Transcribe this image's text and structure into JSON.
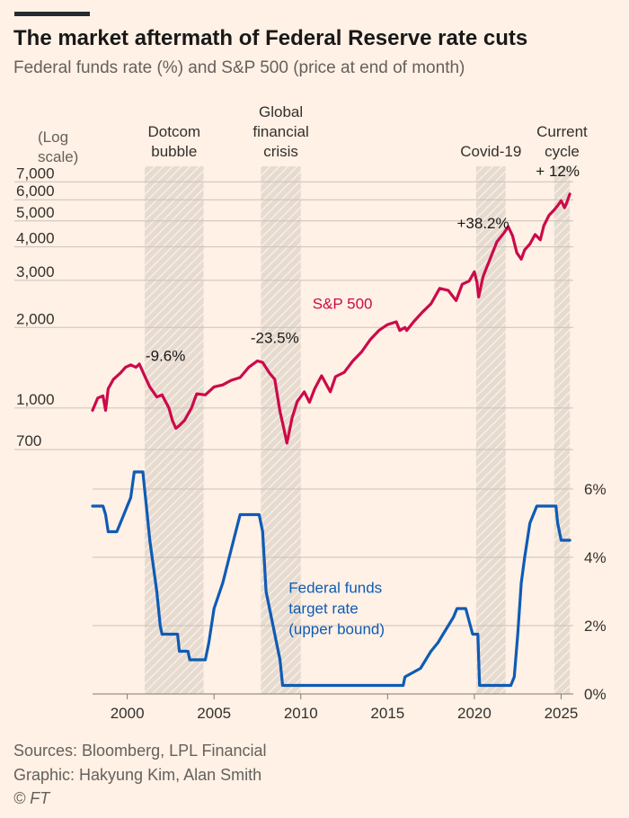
{
  "chart_data": [
    {
      "type": "line",
      "title": "The market aftermath of Federal Reserve rate cuts",
      "subtitle": "Federal funds rate (%) and S&P 500 (price at end of month)",
      "scale_note": "(Log scale)",
      "y_scale": "log",
      "ylim": [
        600,
        8000
      ],
      "y_ticks": [
        {
          "value": 700,
          "label": "700"
        },
        {
          "value": 1000,
          "label": "1,000"
        },
        {
          "value": 2000,
          "label": "2,000"
        },
        {
          "value": 3000,
          "label": "3,000"
        },
        {
          "value": 4000,
          "label": "4,000"
        },
        {
          "value": 5000,
          "label": "5,000"
        },
        {
          "value": 6000,
          "label": "6,000"
        },
        {
          "value": 7000,
          "label": "7,000"
        }
      ],
      "xlim": [
        1998.0,
        2025.7
      ],
      "series": [
        {
          "name": "S&P 500",
          "color": "#cc0a4a",
          "x": [
            1998.0,
            1998.3,
            1998.6,
            1998.75,
            1998.9,
            1999.2,
            1999.6,
            1999.9,
            2000.2,
            2000.5,
            2000.7,
            2001.0,
            2001.3,
            2001.7,
            2002.0,
            2002.4,
            2002.6,
            2002.8,
            2003.0,
            2003.3,
            2003.7,
            2004.0,
            2004.5,
            2005.0,
            2005.5,
            2006.0,
            2006.5,
            2007.0,
            2007.5,
            2007.8,
            2008.2,
            2008.5,
            2008.8,
            2009.0,
            2009.2,
            2009.5,
            2009.8,
            2010.2,
            2010.5,
            2010.8,
            2011.2,
            2011.7,
            2012.0,
            2012.5,
            2013.0,
            2013.5,
            2014.0,
            2014.5,
            2015.0,
            2015.5,
            2015.7,
            2016.0,
            2016.1,
            2016.5,
            2017.0,
            2017.5,
            2018.0,
            2018.5,
            2018.95,
            2019.3,
            2019.7,
            2020.0,
            2020.15,
            2020.25,
            2020.5,
            2020.9,
            2021.3,
            2021.7,
            2021.95,
            2022.2,
            2022.45,
            2022.7,
            2022.9,
            2023.2,
            2023.5,
            2023.8,
            2024.0,
            2024.3,
            2024.6,
            2024.8,
            2025.0,
            2025.2,
            2025.3,
            2025.5
          ],
          "values": [
            980,
            1090,
            1110,
            980,
            1180,
            1280,
            1350,
            1420,
            1450,
            1420,
            1460,
            1320,
            1200,
            1100,
            1120,
            1000,
            900,
            840,
            860,
            900,
            1000,
            1130,
            1120,
            1200,
            1220,
            1270,
            1300,
            1420,
            1500,
            1480,
            1350,
            1280,
            970,
            850,
            740,
            920,
            1060,
            1150,
            1050,
            1180,
            1320,
            1150,
            1310,
            1360,
            1500,
            1620,
            1800,
            1950,
            2050,
            2100,
            1950,
            2000,
            1950,
            2100,
            2280,
            2450,
            2800,
            2750,
            2520,
            2900,
            2980,
            3230,
            2950,
            2600,
            3100,
            3600,
            4180,
            4500,
            4760,
            4400,
            3800,
            3600,
            3900,
            4100,
            4450,
            4250,
            4800,
            5250,
            5500,
            5700,
            5950,
            5600,
            5800,
            6300
          ]
        }
      ],
      "annotations": [
        {
          "text": "-9.6%",
          "x": 2002.2,
          "y": 1500
        },
        {
          "text": "-23.5%",
          "x": 2008.5,
          "y": 1750
        },
        {
          "text": "+38.2%",
          "x": 2020.5,
          "y": 4700
        },
        {
          "text": "+ 12%",
          "x": 2024.8,
          "y": 7350
        }
      ],
      "inline_label": {
        "text": "S&P 500",
        "x": 2012.4,
        "y": 2350
      }
    },
    {
      "type": "line",
      "ylim": [
        0,
        6.5
      ],
      "y_ticks": [
        {
          "value": 0,
          "label": "0%"
        },
        {
          "value": 2,
          "label": "2%"
        },
        {
          "value": 4,
          "label": "4%"
        },
        {
          "value": 6,
          "label": "6%"
        }
      ],
      "x_ticks": [
        2000,
        2005,
        2010,
        2015,
        2020,
        2025
      ],
      "xlim": [
        1998.0,
        2025.7
      ],
      "series": [
        {
          "name": "Federal funds target rate (upper bound)",
          "color": "#0f5bb5",
          "x": [
            1998.0,
            1998.6,
            1998.75,
            1998.9,
            1999.4,
            1999.6,
            1999.8,
            2000.0,
            2000.2,
            2000.4,
            2000.9,
            2001.0,
            2001.1,
            2001.3,
            2001.5,
            2001.7,
            2001.9,
            2002.0,
            2002.9,
            2003.0,
            2003.5,
            2003.6,
            2004.5,
            2004.7,
            2005.0,
            2005.5,
            2006.0,
            2006.5,
            2007.6,
            2007.8,
            2008.0,
            2008.3,
            2008.8,
            2008.95,
            2015.9,
            2016.0,
            2016.9,
            2017.2,
            2017.5,
            2017.9,
            2018.2,
            2018.5,
            2018.8,
            2019.0,
            2019.5,
            2019.9,
            2020.2,
            2020.3,
            2022.1,
            2022.3,
            2022.5,
            2022.7,
            2022.9,
            2023.2,
            2023.6,
            2024.7,
            2024.8,
            2025.0,
            2025.5
          ],
          "values": [
            5.5,
            5.5,
            5.25,
            4.75,
            4.75,
            5.0,
            5.25,
            5.5,
            5.75,
            6.5,
            6.5,
            6.0,
            5.5,
            4.5,
            3.75,
            3.0,
            2.0,
            1.75,
            1.75,
            1.25,
            1.25,
            1.0,
            1.0,
            1.5,
            2.5,
            3.25,
            4.25,
            5.25,
            5.25,
            4.75,
            3.0,
            2.25,
            1.0,
            0.25,
            0.25,
            0.5,
            0.75,
            1.0,
            1.25,
            1.5,
            1.75,
            2.0,
            2.25,
            2.5,
            2.5,
            1.75,
            1.75,
            0.25,
            0.25,
            0.5,
            1.75,
            3.25,
            4.0,
            5.0,
            5.5,
            5.5,
            5.0,
            4.5,
            4.5
          ]
        }
      ],
      "inline_label": {
        "lines": [
          "Federal funds",
          "target rate",
          "(upper bound)"
        ],
        "x": 2009.3,
        "y": 1.75
      }
    }
  ],
  "shaded_periods": [
    {
      "label_lines": [
        "Dotcom",
        "bubble"
      ],
      "start": 2001.0,
      "end": 2004.4
    },
    {
      "label_lines": [
        "Global",
        "financial",
        "crisis"
      ],
      "start": 2007.7,
      "end": 2010.0
    },
    {
      "label_lines": [
        "Covid-19"
      ],
      "start": 2020.1,
      "end": 2021.8
    },
    {
      "label_lines": [
        "Current",
        "cycle"
      ],
      "start": 2024.6,
      "end": 2025.5
    }
  ],
  "source": "Sources: Bloomberg, LPL Financial",
  "credit": "Graphic: Hakyung Kim, Alan Smith",
  "copyright": "© FT",
  "colors": {
    "background": "#fff1e5",
    "text": "#33302e",
    "muted_text": "#66605c",
    "gridline": "#ccc1b7",
    "shade_fill": "#e6dbd1",
    "shade_hatch": "#fff1e5",
    "sp500": "#cc0a4a",
    "fed": "#0f5bb5"
  }
}
